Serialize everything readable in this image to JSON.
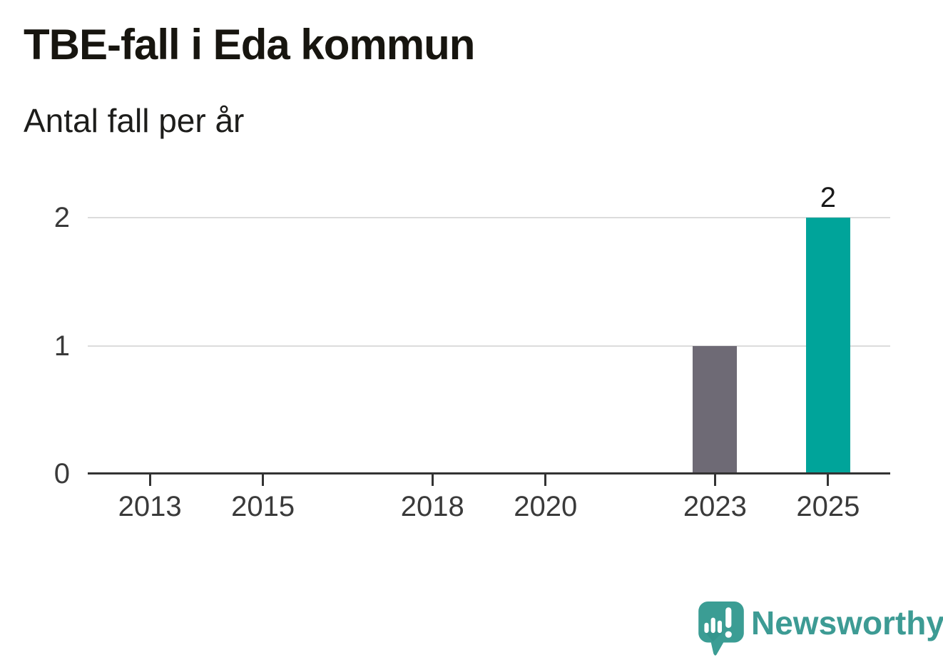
{
  "header": {
    "title": "TBE-fall i Eda kommun",
    "subtitle": "Antal fall per år"
  },
  "footer": {
    "brand": "Newsworthy",
    "brand_color": "#3d9b94",
    "logo_icon": "newsworthy-speech-bubble-bar-chart-icon"
  },
  "chart_data": {
    "type": "bar",
    "title": "TBE-fall i Eda kommun",
    "subtitle": "Antal fall per år",
    "xlabel": "",
    "ylabel": "Antal fall per år",
    "x_domain": [
      2011.9,
      2026.1
    ],
    "ylim": [
      0,
      2
    ],
    "yticks": [
      0,
      1,
      2
    ],
    "xticks": [
      2013,
      2015,
      2018,
      2020,
      2023,
      2025
    ],
    "grid": "horizontal",
    "legend": "none",
    "bars": [
      {
        "x": 2023,
        "value": 1,
        "color": "#6e6a75",
        "label": null
      },
      {
        "x": 2025,
        "value": 2,
        "color": "#00a49a",
        "label": "2"
      }
    ],
    "colors": {
      "default_bar": "#6e6a75",
      "highlight_bar": "#00a49a",
      "gridline": "#dcdcdc",
      "axis": "#333333",
      "tick_label": "#3a3a3a"
    }
  }
}
